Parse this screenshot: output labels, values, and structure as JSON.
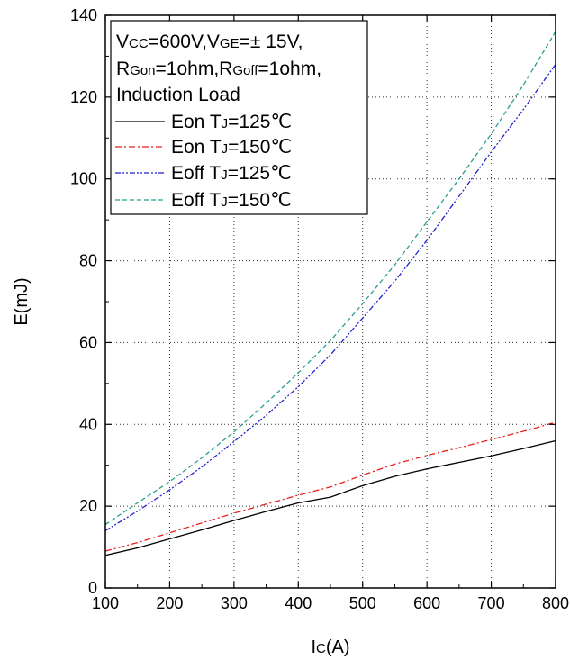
{
  "chart_data": {
    "type": "line",
    "title": "",
    "xlabel": {
      "main": "I",
      "sub": "C",
      "unit": "(A)"
    },
    "ylabel": "E(mJ)",
    "xlim": [
      100,
      800
    ],
    "ylim": [
      0,
      140
    ],
    "xticks": [
      100,
      200,
      300,
      400,
      500,
      600,
      700,
      800
    ],
    "yticks": [
      0,
      20,
      40,
      60,
      80,
      100,
      120,
      140
    ],
    "grid": true,
    "legend_position": "top-left",
    "conditions": [
      [
        {
          "t": "V"
        },
        {
          "t": "CC",
          "sub": true
        },
        {
          "t": "=600V,V"
        },
        {
          "t": "GE",
          "sub": true
        },
        {
          "t": "=± 15V,"
        }
      ],
      [
        {
          "t": "R"
        },
        {
          "t": "Gon",
          "sub": true
        },
        {
          "t": "=1ohm,R"
        },
        {
          "t": "Goff",
          "sub": true
        },
        {
          "t": "=1ohm,"
        }
      ],
      [
        {
          "t": "Induction Load"
        }
      ]
    ],
    "x": [
      100,
      150,
      200,
      250,
      300,
      350,
      400,
      450,
      500,
      550,
      600,
      650,
      700,
      750,
      800
    ],
    "series": [
      {
        "name": "Eon TJ=125℃",
        "label_parts": [
          {
            "t": "Eon T"
          },
          {
            "t": "J",
            "sub": true
          },
          {
            "t": "=125℃"
          }
        ],
        "color": "#000000",
        "dash": "",
        "values": [
          8,
          9.8,
          12,
          14.2,
          16.5,
          18.7,
          20.8,
          22.2,
          25,
          27.3,
          29.1,
          30.7,
          32.3,
          34.1,
          36
        ]
      },
      {
        "name": "Eon TJ=150℃",
        "label_parts": [
          {
            "t": "Eon T"
          },
          {
            "t": "J",
            "sub": true
          },
          {
            "t": "=150℃"
          }
        ],
        "color": "#e8201c",
        "dash": "7,3,2,3",
        "values": [
          9,
          11.1,
          13.5,
          15.9,
          18.3,
          20.5,
          22.7,
          24.7,
          27.6,
          30.3,
          32.4,
          34.3,
          36.3,
          38.3,
          40.5
        ]
      },
      {
        "name": "Eoff TJ=125℃",
        "label_parts": [
          {
            "t": "Eoff T"
          },
          {
            "t": "J",
            "sub": true
          },
          {
            "t": "=125℃"
          }
        ],
        "color": "#2222cc",
        "dash": "6,2,2,2,2,2",
        "values": [
          14,
          18.8,
          24,
          29.6,
          35.8,
          42.2,
          49.2,
          57,
          66,
          75,
          85,
          95.8,
          106.6,
          117,
          128
        ]
      },
      {
        "name": "Eoff TJ=150℃",
        "label_parts": [
          {
            "t": "Eoff T"
          },
          {
            "t": "J",
            "sub": true
          },
          {
            "t": "=150℃"
          }
        ],
        "color": "#2a9d8f",
        "dash": "5,3",
        "values": [
          15.5,
          20.8,
          26,
          31.8,
          38.2,
          45.2,
          52.6,
          60.5,
          69.5,
          79,
          89.5,
          100,
          111,
          123,
          136
        ]
      }
    ]
  }
}
